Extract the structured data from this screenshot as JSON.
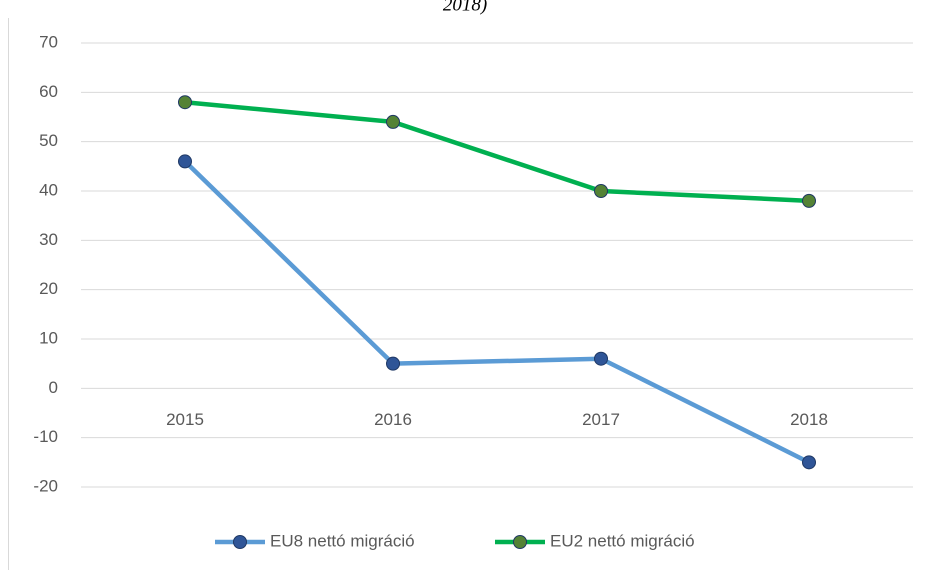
{
  "chart_data": {
    "type": "line",
    "title": "2018)",
    "categories": [
      "2015",
      "2016",
      "2017",
      "2018"
    ],
    "series": [
      {
        "name": "EU8 nettó migráció",
        "color": "#5b9bd5",
        "marker_color": "#2f5597",
        "values": [
          46,
          5,
          6,
          -15
        ]
      },
      {
        "name": "EU2 nettó migráció",
        "color": "#00b050",
        "marker_color": "#548235",
        "values": [
          58,
          54,
          40,
          38
        ]
      }
    ],
    "ylim": [
      -20,
      70
    ],
    "yticks": [
      -20,
      -10,
      0,
      10,
      20,
      30,
      40,
      50,
      60,
      70
    ],
    "grid": true,
    "legend": "bottom"
  }
}
